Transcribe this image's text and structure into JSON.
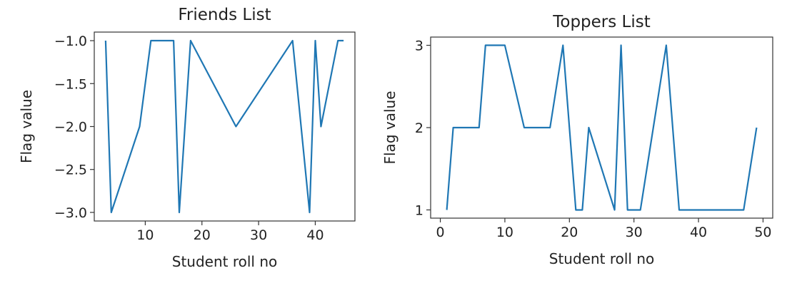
{
  "chart_data": [
    {
      "type": "line",
      "title": "Friends List",
      "xlabel": "Student roll no",
      "ylabel": "Flag value",
      "xlim": [
        1,
        47
      ],
      "ylim": [
        -3.1,
        -0.9
      ],
      "xticks": [
        10,
        20,
        30,
        40
      ],
      "yticks": [
        -1.0,
        -1.5,
        -2.0,
        -2.5,
        -3.0
      ],
      "xtick_labels": [
        "10",
        "20",
        "30",
        "40"
      ],
      "ytick_labels": [
        "−1.0",
        "−1.5",
        "−2.0",
        "−2.5",
        "−3.0"
      ],
      "grid": false,
      "color": "#1f77b4",
      "series": [
        {
          "x": [
            3,
            4,
            9,
            11,
            15,
            16,
            18,
            26,
            36,
            39,
            40,
            41,
            44,
            45
          ],
          "y": [
            -1,
            -3,
            -2,
            -1,
            -1,
            -3,
            -1,
            -2,
            -1,
            -3,
            -1,
            -2,
            -1,
            -1
          ]
        }
      ]
    },
    {
      "type": "line",
      "title": "Toppers List",
      "xlabel": "Student roll no",
      "ylabel": "Flag value",
      "xlim": [
        -1.5,
        51.5
      ],
      "ylim": [
        0.9,
        3.1
      ],
      "xticks": [
        0,
        10,
        20,
        30,
        40,
        50
      ],
      "yticks": [
        1,
        2,
        3
      ],
      "xtick_labels": [
        "0",
        "10",
        "20",
        "30",
        "40",
        "50"
      ],
      "ytick_labels": [
        "1",
        "2",
        "3"
      ],
      "grid": false,
      "color": "#1f77b4",
      "series": [
        {
          "x": [
            1,
            2,
            6,
            7,
            10,
            13,
            17,
            19,
            21,
            22,
            23,
            27,
            28,
            29,
            31,
            35,
            37,
            47,
            49
          ],
          "y": [
            1,
            2,
            2,
            3,
            3,
            2,
            2,
            3,
            1,
            1,
            2,
            1,
            3,
            1,
            1,
            3,
            1,
            1,
            2
          ]
        }
      ]
    }
  ]
}
